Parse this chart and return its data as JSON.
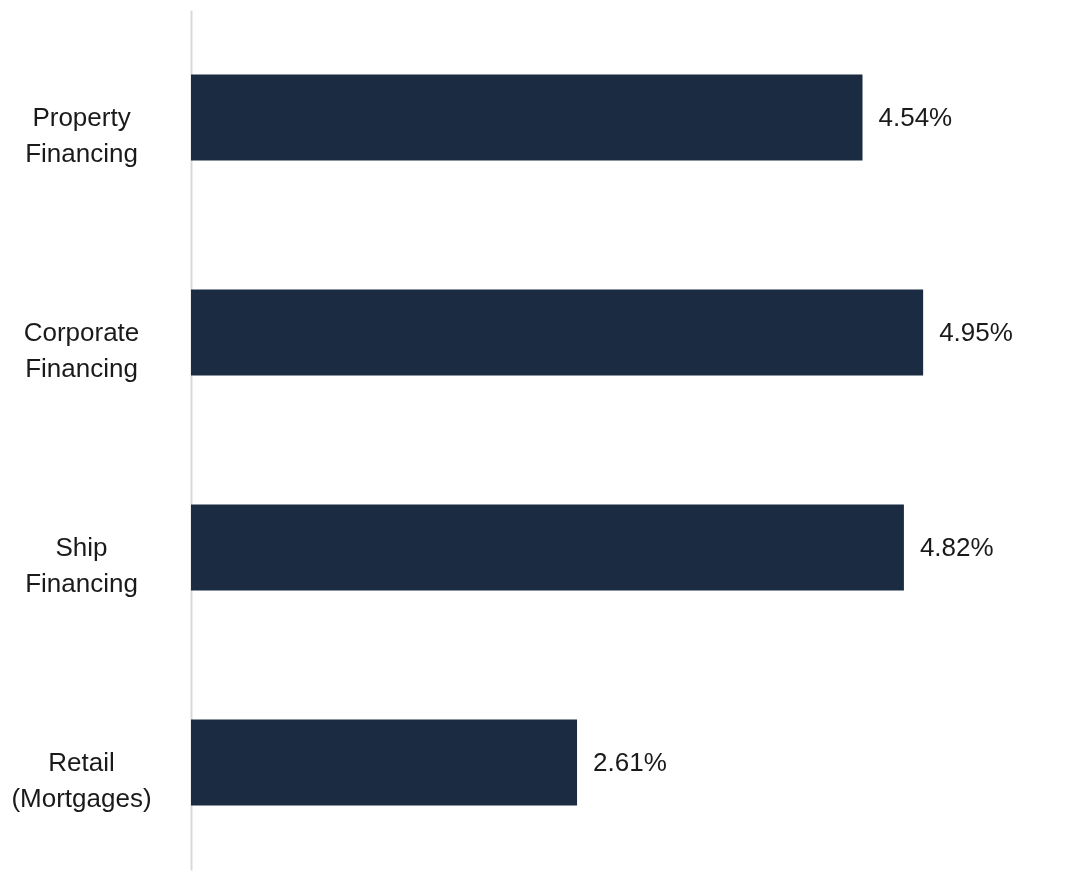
{
  "chart_data": {
    "type": "bar",
    "orientation": "horizontal",
    "categories": [
      "Property Financing",
      "Corporate Financing",
      "Ship Financing",
      "Retail (Mortgages)"
    ],
    "values": [
      4.54,
      4.95,
      4.82,
      2.61
    ],
    "value_labels": [
      "4.54%",
      "4.95%",
      "4.82%",
      "2.61%"
    ],
    "color": "#1a2b42",
    "grid": false
  }
}
